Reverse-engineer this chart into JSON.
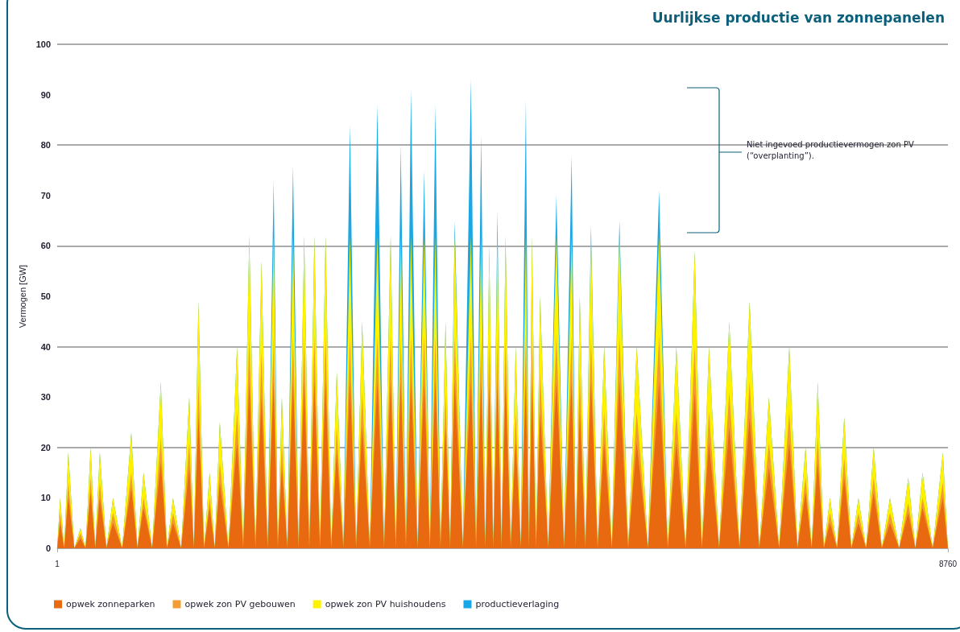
{
  "chart_data": {
    "type": "area",
    "stacked": true,
    "title": "Uurlijkse productie van zonnepanelen",
    "ylabel": "Vermogen [GW]",
    "x": [
      1,
      30,
      70,
      110,
      170,
      230,
      280,
      330,
      375,
      420,
      485,
      550,
      640,
      730,
      790,
      850,
      935,
      1020,
      1080,
      1140,
      1220,
      1300,
      1345,
      1390,
      1445,
      1500,
      1550,
      1600,
      1685,
      1770,
      1830,
      1890,
      1950,
      2010,
      2070,
      2130,
      2170,
      2210,
      2265,
      2320,
      2375,
      2430,
      2480,
      2530,
      2585,
      2640,
      2695,
      2750,
      2815,
      2880,
      2940,
      3000,
      3075,
      3150,
      3215,
      3280,
      3330,
      3380,
      3430,
      3480,
      3545,
      3610,
      3665,
      3720,
      3770,
      3820,
      3865,
      3910,
      3990,
      4070,
      4120,
      4170,
      4210,
      4250,
      4290,
      4330,
      4370,
      4410,
      4460,
      4510,
      4560,
      4610,
      4640,
      4670,
      4710,
      4750,
      4830,
      4910,
      4985,
      5060,
      5100,
      5140,
      5195,
      5250,
      5315,
      5380,
      5455,
      5530,
      5615,
      5700,
      5810,
      5920,
      6005,
      6090,
      6180,
      6270,
      6340,
      6410,
      6510,
      6610,
      6710,
      6810,
      6905,
      7000,
      7100,
      7200,
      7280,
      7360,
      7420,
      7480,
      7540,
      7600,
      7670,
      7740,
      7810,
      7880,
      7955,
      8030,
      8110,
      8190,
      8280,
      8370,
      8440,
      8510,
      8610,
      8710,
      8760
    ],
    "series": [
      {
        "name": "opwek zonneparken",
        "color": "#e8690f",
        "values": [
          0,
          5,
          0,
          10,
          0,
          2,
          0,
          11,
          0,
          10,
          0,
          5,
          0,
          12,
          0,
          8,
          0,
          17,
          0,
          5,
          0,
          16,
          0,
          26,
          0,
          8,
          0,
          13,
          0,
          21,
          0,
          33,
          0,
          30,
          0,
          33,
          0,
          16,
          0,
          33,
          0,
          33,
          0,
          33,
          0,
          33,
          0,
          19,
          0,
          33,
          0,
          24,
          0,
          33,
          0,
          33,
          0,
          33,
          0,
          33,
          0,
          33,
          0,
          33,
          0,
          24,
          0,
          33,
          0,
          33,
          0,
          33,
          0,
          32,
          0,
          33,
          0,
          33,
          0,
          21,
          0,
          33,
          0,
          33,
          0,
          27,
          0,
          33,
          0,
          33,
          0,
          27,
          0,
          33,
          0,
          21,
          0,
          33,
          0,
          21,
          0,
          33,
          0,
          21,
          0,
          31,
          0,
          21,
          0,
          24,
          0,
          26,
          0,
          16,
          0,
          21,
          0,
          11,
          0,
          17,
          0,
          5,
          0,
          14,
          0,
          5,
          0,
          11,
          0,
          5,
          0,
          7,
          0,
          8,
          0,
          10,
          0
        ]
      },
      {
        "name": "opwek zon PV gebouwen",
        "color": "#f39c33",
        "values": [
          0,
          2,
          0,
          3,
          0,
          1,
          0,
          3,
          0,
          3,
          0,
          2,
          0,
          3,
          0,
          2,
          0,
          5,
          0,
          2,
          0,
          5,
          0,
          7,
          0,
          2,
          0,
          4,
          0,
          6,
          0,
          9,
          0,
          9,
          0,
          9,
          0,
          5,
          0,
          9,
          0,
          9,
          0,
          9,
          0,
          9,
          0,
          5,
          0,
          9,
          0,
          7,
          0,
          9,
          0,
          9,
          0,
          9,
          0,
          9,
          0,
          9,
          0,
          9,
          0,
          7,
          0,
          9,
          0,
          9,
          0,
          9,
          0,
          9,
          0,
          9,
          0,
          9,
          0,
          6,
          0,
          9,
          0,
          9,
          0,
          8,
          0,
          9,
          0,
          9,
          0,
          8,
          0,
          9,
          0,
          6,
          0,
          9,
          0,
          6,
          0,
          9,
          0,
          6,
          0,
          9,
          0,
          6,
          0,
          7,
          0,
          7,
          0,
          5,
          0,
          6,
          0,
          3,
          0,
          5,
          0,
          2,
          0,
          4,
          0,
          2,
          0,
          3,
          0,
          2,
          0,
          2,
          0,
          2,
          0,
          3,
          0
        ]
      },
      {
        "name": "opwek zon PV huishoudens",
        "color": "#fff200",
        "values": [
          0,
          3,
          0,
          6,
          0,
          1,
          0,
          6,
          0,
          6,
          0,
          3,
          0,
          8,
          0,
          5,
          0,
          11,
          0,
          3,
          0,
          9,
          0,
          16,
          0,
          5,
          0,
          8,
          0,
          13,
          0,
          20,
          0,
          18,
          0,
          20,
          0,
          9,
          0,
          20,
          0,
          20,
          0,
          20,
          0,
          20,
          0,
          11,
          0,
          20,
          0,
          14,
          0,
          20,
          0,
          20,
          0,
          20,
          0,
          20,
          0,
          20,
          0,
          20,
          0,
          14,
          0,
          20,
          0,
          20,
          0,
          20,
          0,
          19,
          0,
          20,
          0,
          20,
          0,
          13,
          0,
          20,
          0,
          20,
          0,
          15,
          0,
          20,
          0,
          20,
          0,
          15,
          0,
          20,
          0,
          13,
          0,
          20,
          0,
          13,
          0,
          20,
          0,
          13,
          0,
          19,
          0,
          13,
          0,
          14,
          0,
          16,
          0,
          9,
          0,
          13,
          0,
          6,
          0,
          11,
          0,
          3,
          0,
          8,
          0,
          3,
          0,
          6,
          0,
          3,
          0,
          5,
          0,
          5,
          0,
          6,
          0
        ]
      },
      {
        "name": "productieverlaging",
        "color": "#1aa7e6",
        "values": [
          0,
          0,
          0,
          0,
          0,
          0,
          0,
          0,
          0,
          0,
          0,
          0,
          0,
          0,
          0,
          0,
          0,
          0,
          0,
          0,
          0,
          0,
          0,
          0,
          0,
          0,
          0,
          0,
          0,
          0,
          0,
          0,
          0,
          0,
          0,
          11,
          0,
          0,
          0,
          14,
          0,
          0,
          0,
          0,
          0,
          0,
          0,
          0,
          0,
          22,
          0,
          0,
          0,
          26,
          0,
          0,
          0,
          18,
          0,
          29,
          0,
          13,
          0,
          26,
          0,
          0,
          0,
          3,
          0,
          31,
          0,
          20,
          0,
          0,
          0,
          5,
          0,
          0,
          0,
          0,
          0,
          27,
          0,
          0,
          0,
          0,
          0,
          8,
          0,
          16,
          0,
          0,
          0,
          2,
          0,
          0,
          0,
          3,
          0,
          0,
          0,
          9,
          0,
          0,
          0,
          0,
          0,
          0,
          0,
          0,
          0,
          0,
          0,
          0,
          0,
          0,
          0,
          0,
          0,
          0,
          0,
          0,
          0,
          0,
          0,
          0,
          0,
          0,
          0,
          0,
          0,
          0,
          0,
          0,
          0,
          0,
          0
        ]
      }
    ],
    "xlim": [
      1,
      8760
    ],
    "xticks": [
      1,
      8760
    ],
    "ylim": [
      0,
      100
    ],
    "yticks": [
      0,
      10,
      20,
      30,
      40,
      50,
      60,
      70,
      80,
      90,
      100
    ],
    "grid": "y",
    "legend": "bottom left",
    "marker": "none",
    "annotations": [
      "Niet ingevoed productievermogen zon PV (“overplanting”)."
    ]
  }
}
